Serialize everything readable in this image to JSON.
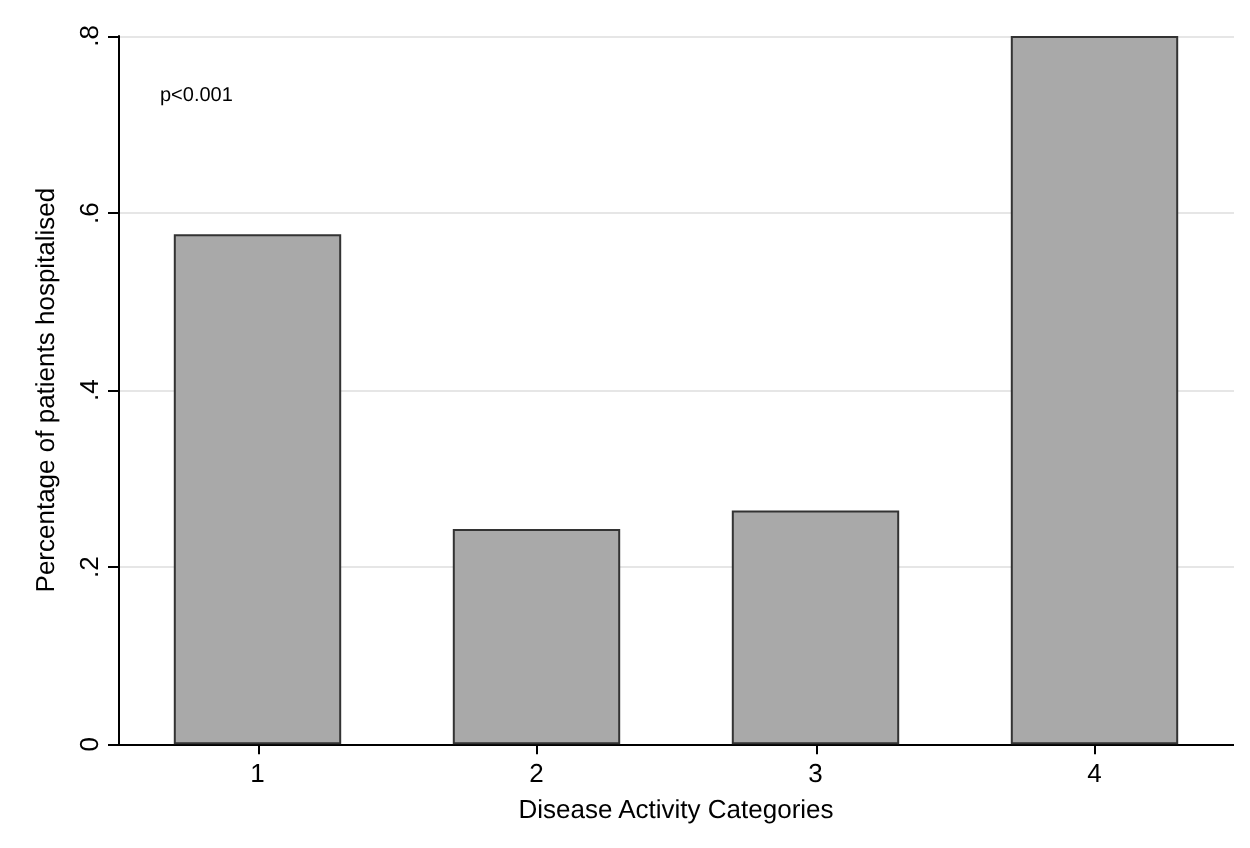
{
  "chart_data": {
    "type": "bar",
    "xlabel": "Disease Activity Categories",
    "ylabel": "Percentage of patients hospitalised",
    "categories": [
      "1",
      "2",
      "3",
      "4"
    ],
    "values": [
      0.576,
      0.243,
      0.264,
      0.8
    ],
    "color": "#a9a9a9",
    "ylim": [
      0,
      0.8
    ],
    "yticks": [
      0,
      {
        "value": 0.2,
        "label": ".2"
      },
      {
        "value": 0.4,
        "label": ".4"
      },
      {
        "value": 0.6,
        "label": ".6"
      },
      {
        "value": 0.8,
        "label": ".8"
      }
    ],
    "grid": "y",
    "annotations": [
      "p<0.001"
    ]
  }
}
